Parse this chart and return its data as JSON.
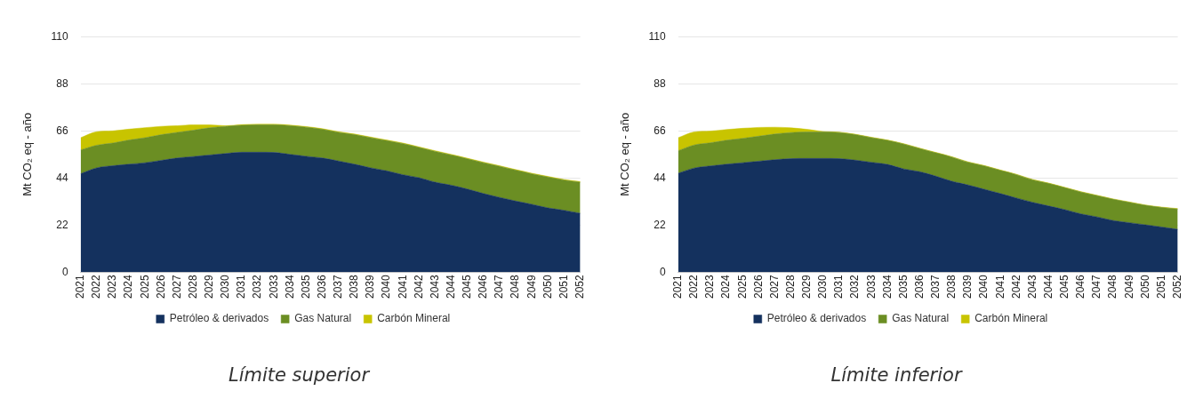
{
  "chart_data": [
    {
      "type": "area",
      "stacked": true,
      "grid": "y",
      "legend": "bottom",
      "marker": "none",
      "ylabel": "Mt CO₂ eq - año",
      "ylim": [
        0,
        110
      ],
      "yticks": [
        0,
        22,
        44,
        66,
        88,
        110
      ],
      "categories": [
        "2021",
        "2022",
        "2023",
        "2024",
        "2025",
        "2026",
        "2027",
        "2028",
        "2029",
        "2030",
        "2031",
        "2032",
        "2033",
        "2034",
        "2035",
        "2036",
        "2037",
        "2038",
        "2039",
        "2040",
        "2041",
        "2042",
        "2043",
        "2044",
        "2045",
        "2046",
        "2047",
        "2048",
        "2049",
        "2050",
        "2051",
        "2052"
      ],
      "series": [
        {
          "name": "Petróleo & derivados",
          "color": "#14315e",
          "values": [
            46,
            48.7,
            49.7,
            50.4,
            51.1,
            52.2,
            53.3,
            54,
            54.7,
            55.4,
            56,
            56,
            55.9,
            55,
            54.1,
            53.3,
            51.9,
            50.4,
            48.7,
            47.3,
            45.5,
            44.1,
            42,
            40.6,
            38.8,
            36.7,
            34.9,
            33.2,
            31.7,
            30,
            28.9,
            27.5
          ]
        },
        {
          "name": "Gas Natural",
          "color": "#6b8e23",
          "values": [
            11.1,
            10.6,
            10.6,
            11.3,
            11.7,
            12,
            12,
            12.3,
            12.7,
            12.7,
            12.6,
            12.8,
            12.9,
            13.4,
            13.6,
            13.4,
            13.4,
            13.8,
            14.1,
            14.1,
            14.5,
            14.1,
            14.4,
            14.1,
            14.1,
            14.4,
            14.5,
            14.4,
            14.2,
            14.4,
            14.1,
            14.5
          ]
        },
        {
          "name": "Carbón Mineral",
          "color": "#c8c400",
          "values": [
            5.7,
            6.3,
            5.7,
            5.1,
            4.7,
            3.9,
            3.1,
            2.5,
            1.4,
            0.3,
            0.3,
            0.3,
            0.3,
            0.3,
            0.3,
            0.3,
            0.3,
            0.3,
            0.3,
            0.3,
            0.3,
            0.3,
            0.3,
            0.3,
            0.3,
            0.3,
            0.3,
            0.3,
            0.3,
            0.3,
            0.3,
            0.3
          ]
        }
      ],
      "annotations": [
        "Límite superior"
      ]
    },
    {
      "type": "area",
      "stacked": true,
      "grid": "y",
      "legend": "bottom",
      "marker": "none",
      "ylabel": "Mt CO₂ eq - año",
      "ylim": [
        0,
        110
      ],
      "yticks": [
        0,
        22,
        44,
        66,
        88,
        110
      ],
      "categories": [
        "2021",
        "2022",
        "2023",
        "2024",
        "2025",
        "2026",
        "2027",
        "2028",
        "2029",
        "2030",
        "2031",
        "2032",
        "2033",
        "2034",
        "2035",
        "2036",
        "2037",
        "2038",
        "2039",
        "2040",
        "2041",
        "2042",
        "2043",
        "2044",
        "2045",
        "2046",
        "2047",
        "2048",
        "2049",
        "2050",
        "2051",
        "2052"
      ],
      "series": [
        {
          "name": "Petróleo & derivados",
          "color": "#14315e",
          "values": [
            46.2,
            48.6,
            49.6,
            50.4,
            51.1,
            51.8,
            52.5,
            53,
            53.1,
            53.1,
            53,
            52.3,
            51.3,
            50.3,
            48.2,
            46.9,
            44.8,
            42.4,
            40.7,
            38.7,
            36.7,
            34.6,
            32.6,
            30.9,
            29.2,
            27.2,
            25.8,
            24.1,
            23.1,
            22.1,
            21.1,
            20
          ]
        },
        {
          "name": "Gas Natural",
          "color": "#6b8e23",
          "values": [
            10.5,
            10.8,
            10.8,
            11.2,
            11.4,
            11.7,
            12,
            12.2,
            12.4,
            12.4,
            12.2,
            11.9,
            11.5,
            11.2,
            11.6,
            10.8,
            10.9,
            11.3,
            10.6,
            10.9,
            10.8,
            10.9,
            10.5,
            10.5,
            10.2,
            10.2,
            9.9,
            9.9,
            9.5,
            9.1,
            9.1,
            9.5
          ]
        },
        {
          "name": "Carbón Mineral",
          "color": "#c8c400",
          "values": [
            6.1,
            6.1,
            5.5,
            5,
            4.7,
            4.1,
            3.2,
            2.2,
            1.2,
            0.2,
            0.2,
            0.2,
            0.2,
            0.2,
            0.2,
            0.2,
            0.2,
            0.2,
            0.2,
            0.2,
            0.2,
            0.2,
            0.2,
            0.2,
            0.2,
            0.2,
            0.2,
            0.2,
            0.2,
            0.2,
            0.2,
            0.2
          ]
        }
      ],
      "annotations": [
        "Límite inferior"
      ]
    }
  ]
}
